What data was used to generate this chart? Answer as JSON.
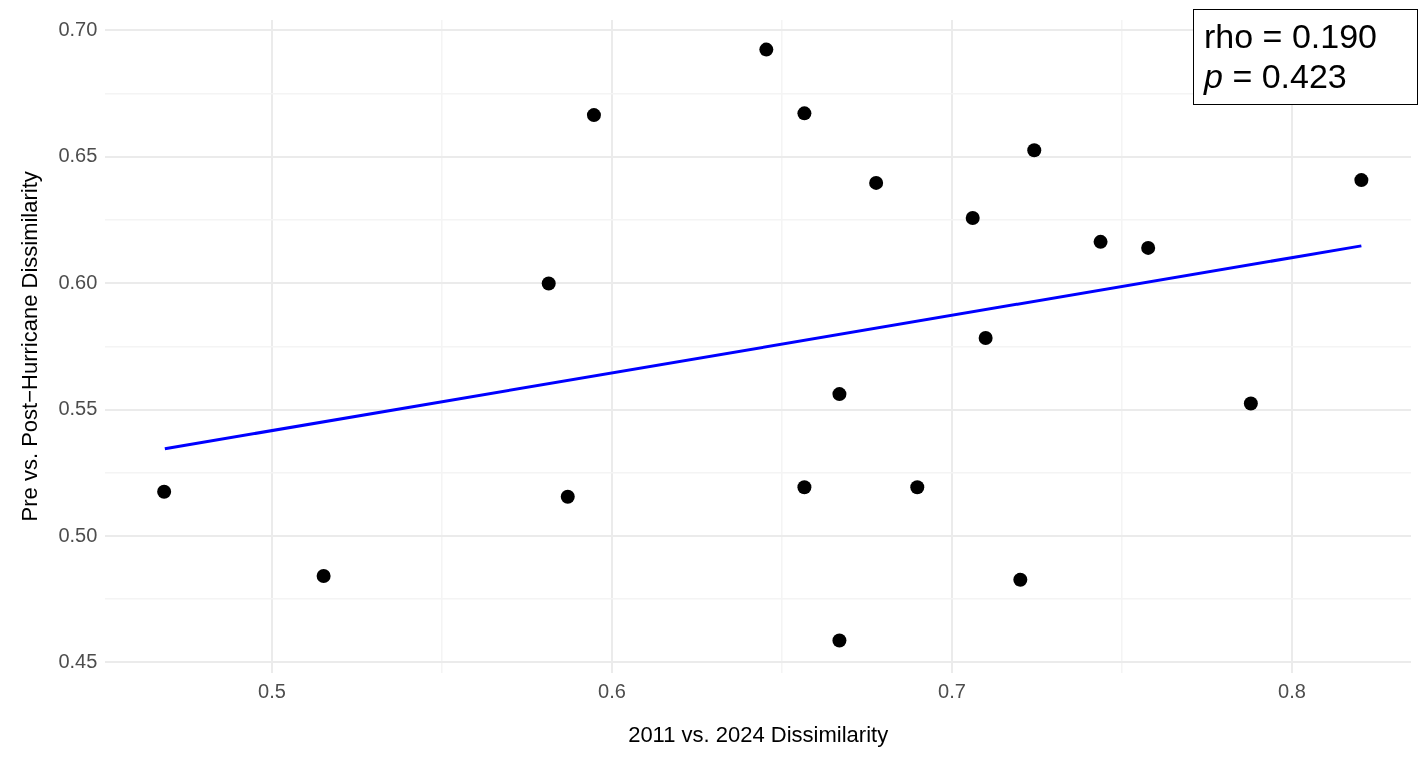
{
  "chart_data": {
    "type": "scatter",
    "xlabel": "2011 vs. 2024 Dissimilarity",
    "ylabel": "Pre vs. Post−Hurricane Dissimilarity",
    "annotations": [
      "rho = 0.190",
      "p = 0.423"
    ],
    "xlim": [
      0.451,
      0.835
    ],
    "ylim": [
      0.446,
      0.704
    ],
    "xticks": [
      0.5,
      {
        "value": 0.55,
        "label": null
      },
      0.6,
      {
        "value": 0.65,
        "label": null
      },
      0.7,
      {
        "value": 0.75,
        "label": null
      },
      0.8
    ],
    "yticks": [
      {
        "value": 0.45,
        "label": "0.45"
      },
      {
        "value": 0.475,
        "label": null
      },
      {
        "value": 0.5,
        "label": "0.50"
      },
      {
        "value": 0.525,
        "label": null
      },
      {
        "value": 0.55,
        "label": "0.55"
      },
      {
        "value": 0.575,
        "label": null
      },
      {
        "value": 0.6,
        "label": "0.60"
      },
      {
        "value": 0.625,
        "label": null
      },
      {
        "value": 0.65,
        "label": "0.65"
      },
      {
        "value": 0.675,
        "label": null
      },
      {
        "value": 0.7,
        "label": "0.70"
      }
    ],
    "grid": true,
    "legend": false,
    "series": [
      {
        "type": "scatter",
        "color": "#000000",
        "marker": "circle",
        "x": [
          0.4683,
          0.5152,
          0.5814,
          0.587,
          0.5947,
          0.6454,
          0.6566,
          0.6566,
          0.6669,
          0.6669,
          0.6777,
          0.6898,
          0.7061,
          0.7099,
          0.7201,
          0.7242,
          0.7437,
          0.7577,
          0.7879,
          0.8204
        ],
        "values": [
          0.5175,
          0.4842,
          0.5998,
          0.5155,
          0.6664,
          0.6923,
          0.6671,
          0.5193,
          0.5561,
          0.4587,
          0.6396,
          0.5193,
          0.6257,
          0.5783,
          0.4827,
          0.6525,
          0.6163,
          0.6139,
          0.5524,
          0.6407
        ]
      },
      {
        "type": "line",
        "color": "#0000ff",
        "marker": "none",
        "line_style": "solid",
        "x": [
          0.4685,
          0.8204
        ],
        "values": [
          0.5345,
          0.6147
        ]
      }
    ]
  }
}
